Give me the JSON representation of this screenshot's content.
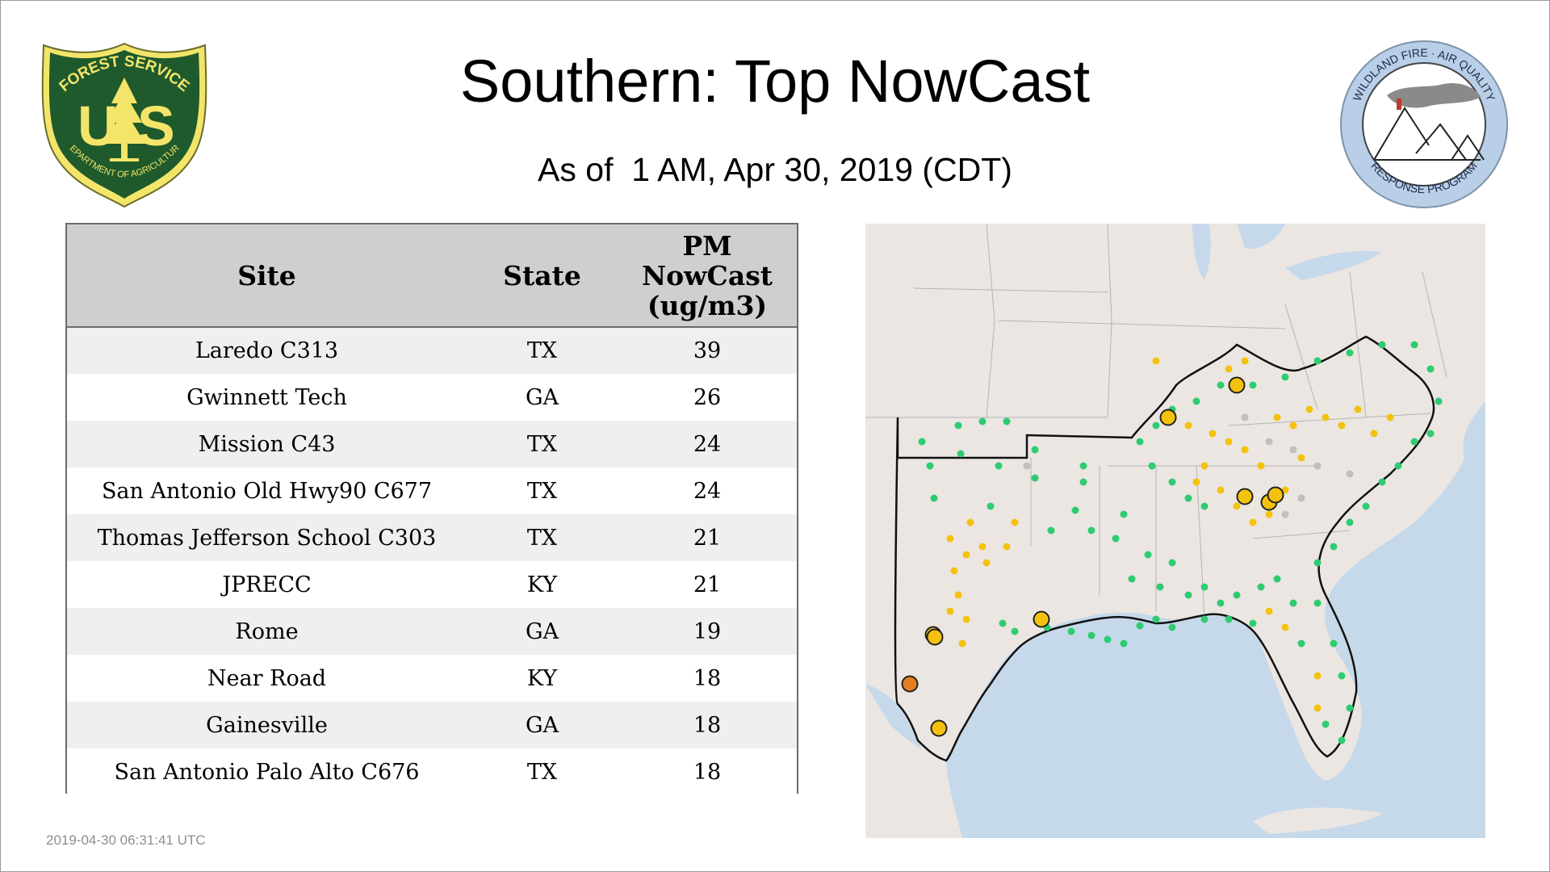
{
  "title": "Southern: Top NowCast",
  "subtitle": "As of  1 AM, Apr 30, 2019 (CDT)",
  "timestamp": "2019-04-30 06:31:41 UTC",
  "logos": {
    "forest_service": {
      "top_text": "FOREST SERVICE",
      "letters_left": "U",
      "letters_right": "S",
      "bottom_text": "DEPARTMENT OF AGRICULTURE"
    },
    "wildland": {
      "top_text": "WILDLAND FIRE · AIR QUALITY",
      "bottom_text": "RESPONSE PROGRAM"
    }
  },
  "table": {
    "headers": {
      "site": "Site",
      "state": "State",
      "nowcast_line1": "PM",
      "nowcast_line2": "NowCast",
      "nowcast_line3": "(ug/m3)"
    },
    "rows": [
      {
        "site": "Laredo C313",
        "state": "TX",
        "value": "39"
      },
      {
        "site": "Gwinnett Tech",
        "state": "GA",
        "value": "26"
      },
      {
        "site": "Mission C43",
        "state": "TX",
        "value": "24"
      },
      {
        "site": "San Antonio Old Hwy90 C677",
        "state": "TX",
        "value": "24"
      },
      {
        "site": "Thomas Jefferson School C303",
        "state": "TX",
        "value": "21"
      },
      {
        "site": "JPRECC",
        "state": "KY",
        "value": "21"
      },
      {
        "site": "Rome",
        "state": "GA",
        "value": "19"
      },
      {
        "site": "Near Road",
        "state": "KY",
        "value": "18"
      },
      {
        "site": "Gainesville",
        "state": "GA",
        "value": "18"
      },
      {
        "site": "San Antonio Palo Alto C676",
        "state": "TX",
        "value": "18"
      }
    ]
  },
  "colors": {
    "good": "#2ecc71",
    "moderate": "#f4c20d",
    "usg": "#e67e22",
    "no_data": "#c0c0c0",
    "land": "#ebe6e2",
    "water": "#c6d9ea"
  }
}
